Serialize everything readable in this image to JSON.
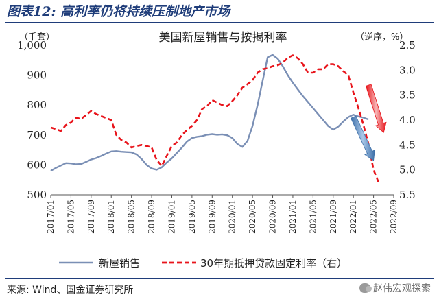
{
  "header": {
    "title": "图表12:  高利率仍将持续压制地产市场"
  },
  "source": "来源: Wind、国金证券研究所",
  "watermark": "赵伟宏观探索",
  "chart_data": {
    "type": "line",
    "title": "美国新屋销售与按揭利率",
    "left_unit": "（千套）",
    "right_unit": "（逆序，%）",
    "xlabels": [
      "2017/01",
      "2017/05",
      "2017/09",
      "2018/01",
      "2018/05",
      "2018/09",
      "2019/01",
      "2019/05",
      "2019/09",
      "2020/01",
      "2020/05",
      "2020/09",
      "2021/01",
      "2021/05",
      "2021/09",
      "2022/01",
      "2022/05",
      "2022/09"
    ],
    "x_range": [
      "2017-01",
      "2022-09"
    ],
    "y_left": {
      "min": 500,
      "max": 1000,
      "ticks": [
        500,
        600,
        700,
        800,
        900,
        1000
      ],
      "tick_labels": [
        "500",
        "600",
        "700",
        "800",
        "900",
        "1,000"
      ]
    },
    "y_right": {
      "min": 2.5,
      "max": 5.5,
      "inverted": true,
      "ticks": [
        2.5,
        3.0,
        3.5,
        4.0,
        4.5,
        5.0,
        5.5
      ],
      "tick_labels": [
        "2.5",
        "3.0",
        "3.5",
        "4.0",
        "4.5",
        "5.0",
        "5.5"
      ]
    },
    "series": [
      {
        "name": "新屋销售",
        "axis": "left",
        "color": "#7a8fb5",
        "x": [
          "2017-01",
          "2017-02",
          "2017-03",
          "2017-04",
          "2017-05",
          "2017-06",
          "2017-07",
          "2017-08",
          "2017-09",
          "2017-10",
          "2017-11",
          "2017-12",
          "2018-01",
          "2018-02",
          "2018-03",
          "2018-04",
          "2018-05",
          "2018-06",
          "2018-07",
          "2018-08",
          "2018-09",
          "2018-10",
          "2018-11",
          "2018-12",
          "2019-01",
          "2019-02",
          "2019-03",
          "2019-04",
          "2019-05",
          "2019-06",
          "2019-07",
          "2019-08",
          "2019-09",
          "2019-10",
          "2019-11",
          "2019-12",
          "2020-01",
          "2020-02",
          "2020-03",
          "2020-04",
          "2020-05",
          "2020-06",
          "2020-07",
          "2020-08",
          "2020-09",
          "2020-10",
          "2020-11",
          "2020-12",
          "2021-01",
          "2021-02",
          "2021-03",
          "2021-04",
          "2021-05",
          "2021-06",
          "2021-07",
          "2021-08",
          "2021-09",
          "2021-10",
          "2021-11",
          "2021-12",
          "2022-01",
          "2022-02",
          "2022-03",
          "2022-04"
        ],
        "values": [
          580,
          590,
          598,
          606,
          605,
          602,
          603,
          610,
          618,
          623,
          630,
          638,
          645,
          646,
          644,
          643,
          642,
          635,
          620,
          600,
          588,
          584,
          592,
          608,
          622,
          640,
          658,
          678,
          690,
          694,
          696,
          701,
          703,
          701,
          702,
          699,
          690,
          670,
          660,
          680,
          730,
          800,
          880,
          960,
          968,
          955,
          930,
          900,
          875,
          852,
          830,
          810,
          790,
          770,
          750,
          730,
          718,
          728,
          745,
          760,
          768,
          762,
          758,
          752
        ]
      },
      {
        "name": "30年期抵押贷款固定利率（右）",
        "axis": "right",
        "color": "#e8141b",
        "dashed": true,
        "x": [
          "2017-01",
          "2017-02",
          "2017-03",
          "2017-04",
          "2017-05",
          "2017-06",
          "2017-07",
          "2017-08",
          "2017-09",
          "2017-10",
          "2017-11",
          "2017-12",
          "2018-01",
          "2018-02",
          "2018-03",
          "2018-04",
          "2018-05",
          "2018-06",
          "2018-07",
          "2018-08",
          "2018-09",
          "2018-10",
          "2018-11",
          "2018-12",
          "2019-01",
          "2019-02",
          "2019-03",
          "2019-04",
          "2019-05",
          "2019-06",
          "2019-07",
          "2019-08",
          "2019-09",
          "2019-10",
          "2019-11",
          "2019-12",
          "2020-01",
          "2020-02",
          "2020-03",
          "2020-04",
          "2020-05",
          "2020-06",
          "2020-07",
          "2020-08",
          "2020-09",
          "2020-10",
          "2020-11",
          "2020-12",
          "2021-01",
          "2021-02",
          "2021-03",
          "2021-04",
          "2021-05",
          "2021-06",
          "2021-07",
          "2021-08",
          "2021-09",
          "2021-10",
          "2021-11",
          "2021-12",
          "2022-01",
          "2022-02",
          "2022-03",
          "2022-04",
          "2022-05",
          "2022-06"
        ],
        "values": [
          4.15,
          4.18,
          4.22,
          4.1,
          4.05,
          3.95,
          3.98,
          3.9,
          3.82,
          3.88,
          3.92,
          3.96,
          4.0,
          4.3,
          4.4,
          4.45,
          4.55,
          4.52,
          4.5,
          4.52,
          4.55,
          4.8,
          4.92,
          4.72,
          4.52,
          4.45,
          4.3,
          4.2,
          4.12,
          4.0,
          3.78,
          3.72,
          3.6,
          3.65,
          3.7,
          3.72,
          3.62,
          3.5,
          3.35,
          3.28,
          3.2,
          3.05,
          2.98,
          2.96,
          2.92,
          2.9,
          2.85,
          2.75,
          2.7,
          2.76,
          2.88,
          3.05,
          3.05,
          2.98,
          2.98,
          2.88,
          2.88,
          2.92,
          3.02,
          3.1,
          3.45,
          3.76,
          4.1,
          4.48,
          5.0,
          5.25
        ]
      }
    ],
    "annotations": [
      {
        "type": "arrow",
        "color": "#5b8fc7",
        "from": [
          "2022-01",
          760
        ],
        "to": [
          "2022-05",
          615
        ],
        "axis": "left"
      },
      {
        "type": "arrow",
        "color": "#e84a4a",
        "from": [
          "2022-04",
          3.3
        ],
        "to": [
          "2022-07",
          4.25
        ],
        "axis": "right"
      }
    ],
    "legend": {
      "position": "bottom",
      "entries": [
        "新屋销售",
        "30年期抵押贷款固定利率（右）"
      ]
    },
    "grid": false
  }
}
